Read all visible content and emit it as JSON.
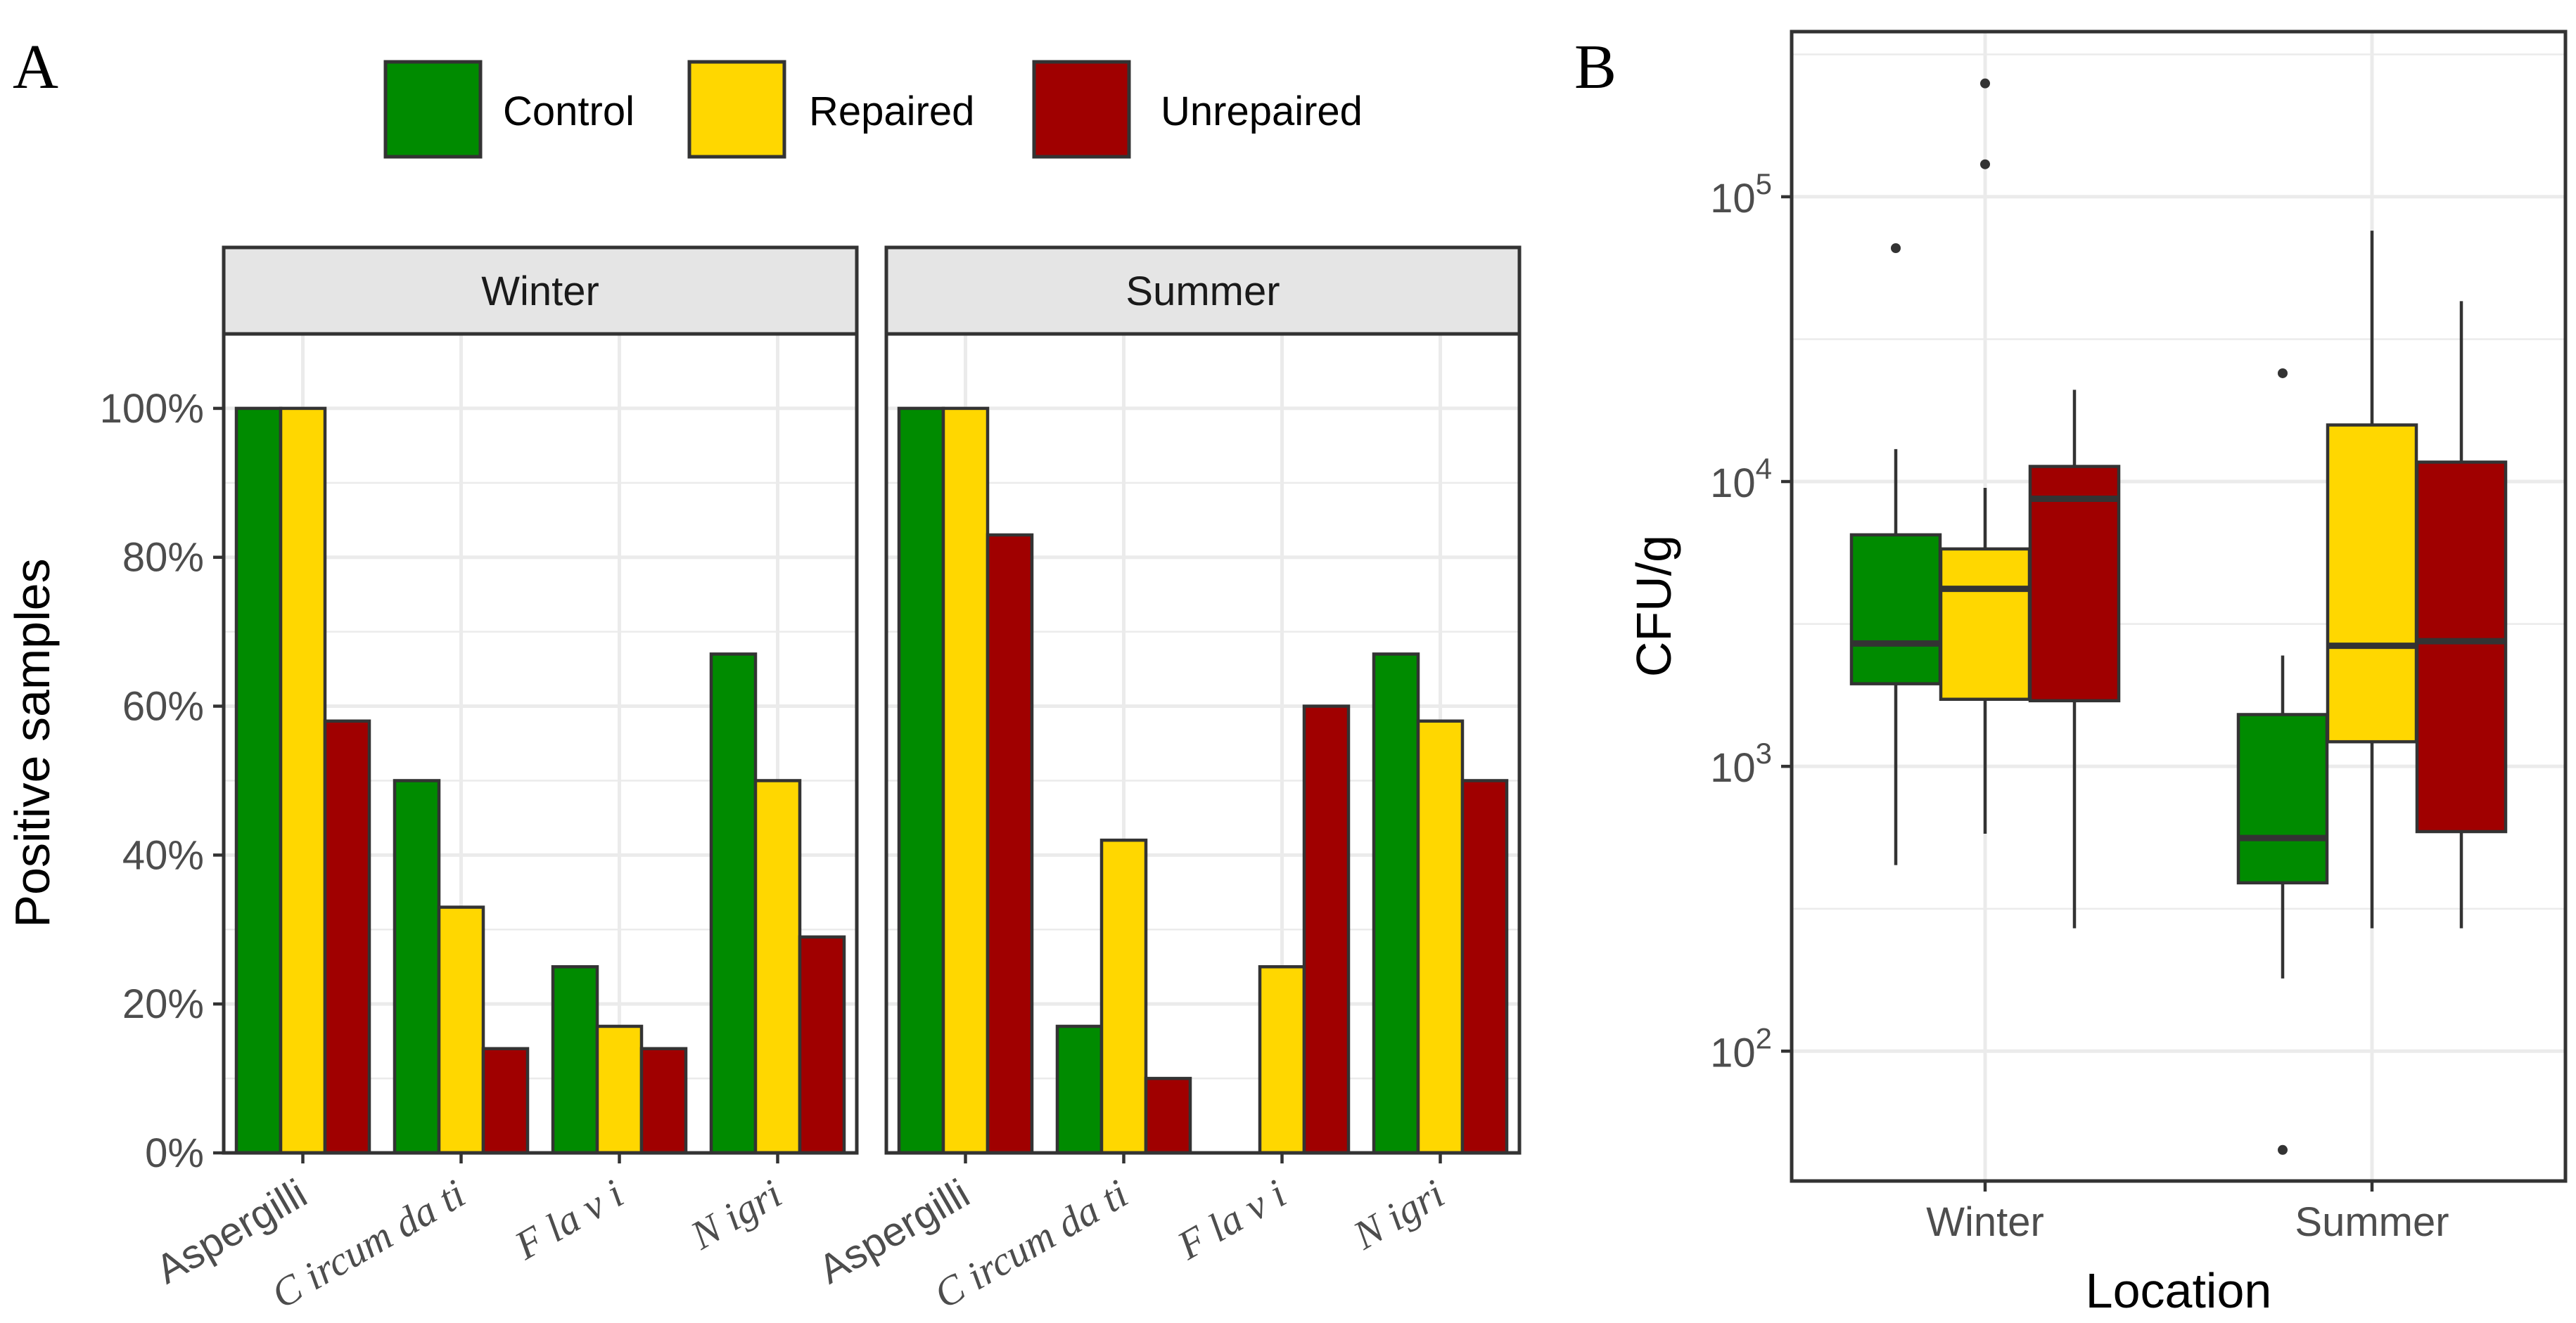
{
  "colors": {
    "control": "#008b00",
    "repaired": "#ffd700",
    "unrepaired": "#a00000",
    "outline": "#333333",
    "strip_bg": "#e5e5e5",
    "grid": "#ebebeb"
  },
  "legend": {
    "items": [
      {
        "key": "control",
        "label": "Control"
      },
      {
        "key": "repaired",
        "label": "Repaired"
      },
      {
        "key": "unrepaired",
        "label": "Unrepaired"
      }
    ]
  },
  "chart_data": [
    {
      "panel": "A",
      "type": "bar",
      "ylabel": "Positive samples",
      "xlabel": "",
      "ylim": [
        0,
        1.1
      ],
      "yticks": [
        0,
        0.2,
        0.4,
        0.6,
        0.8,
        1.0
      ],
      "ytick_labels": [
        "0%",
        "20%",
        "40%",
        "60%",
        "80%",
        "100%"
      ],
      "categories": [
        "Aspergilli",
        "Circumdati",
        "Flavi",
        "Nigri"
      ],
      "category_labels": [
        "Aspergilli",
        "C ircum da ti",
        "F la v i",
        "N igri"
      ],
      "facets": [
        {
          "name": "Winter",
          "series": [
            {
              "name": "Control",
              "values": [
                1.0,
                0.5,
                0.25,
                0.67
              ]
            },
            {
              "name": "Repaired",
              "values": [
                1.0,
                0.33,
                0.17,
                0.5
              ]
            },
            {
              "name": "Unrepaired",
              "values": [
                0.58,
                0.14,
                0.14,
                0.29
              ]
            }
          ]
        },
        {
          "name": "Summer",
          "series": [
            {
              "name": "Control",
              "values": [
                1.0,
                0.17,
                0.0,
                0.67
              ]
            },
            {
              "name": "Repaired",
              "values": [
                1.0,
                0.42,
                0.25,
                0.58
              ]
            },
            {
              "name": "Unrepaired",
              "values": [
                0.83,
                0.1,
                0.6,
                0.5
              ]
            }
          ]
        }
      ]
    },
    {
      "panel": "B",
      "type": "box",
      "xlabel": "Location",
      "ylabel": "CFU/g",
      "yscale": "log10",
      "ylim": [
        35,
        380000
      ],
      "ytick_exponents": [
        2,
        3,
        4,
        5
      ],
      "ytick_base": "10",
      "categories": [
        "Winter",
        "Summer"
      ],
      "groups": [
        {
          "location": "Winter",
          "boxes": [
            {
              "name": "Control",
              "low": 450,
              "q1": 1950,
              "median": 2700,
              "q3": 6500,
              "high": 13000,
              "outliers": [
                66000
              ]
            },
            {
              "name": "Repaired",
              "low": 580,
              "q1": 1720,
              "median": 4200,
              "q3": 5800,
              "high": 9500,
              "outliers": [
                130000,
                250000
              ]
            },
            {
              "name": "Unrepaired",
              "low": 270,
              "q1": 1700,
              "median": 8700,
              "q3": 11300,
              "high": 21000,
              "outliers": []
            }
          ]
        },
        {
          "location": "Summer",
          "boxes": [
            {
              "name": "Control",
              "low": 180,
              "q1": 390,
              "median": 560,
              "q3": 1520,
              "high": 2450,
              "outliers": [
                24000,
                45
              ]
            },
            {
              "name": "Repaired",
              "low": 270,
              "q1": 1220,
              "median": 2650,
              "q3": 15800,
              "high": 76000,
              "outliers": []
            },
            {
              "name": "Unrepaired",
              "low": 270,
              "q1": 590,
              "median": 2750,
              "q3": 11700,
              "high": 43000,
              "outliers": []
            }
          ]
        }
      ]
    }
  ]
}
